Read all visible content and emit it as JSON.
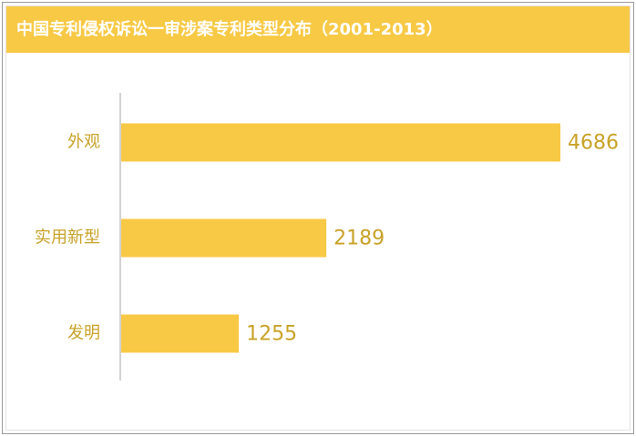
{
  "chart_data": {
    "type": "bar",
    "orientation": "horizontal",
    "title": "中国专利侵权诉讼一审涉案专利类型分布（2001-2013）",
    "categories": [
      "外观",
      "实用新型",
      "发明"
    ],
    "values": [
      4686,
      2189,
      1255
    ],
    "color": "#f8c945"
  }
}
